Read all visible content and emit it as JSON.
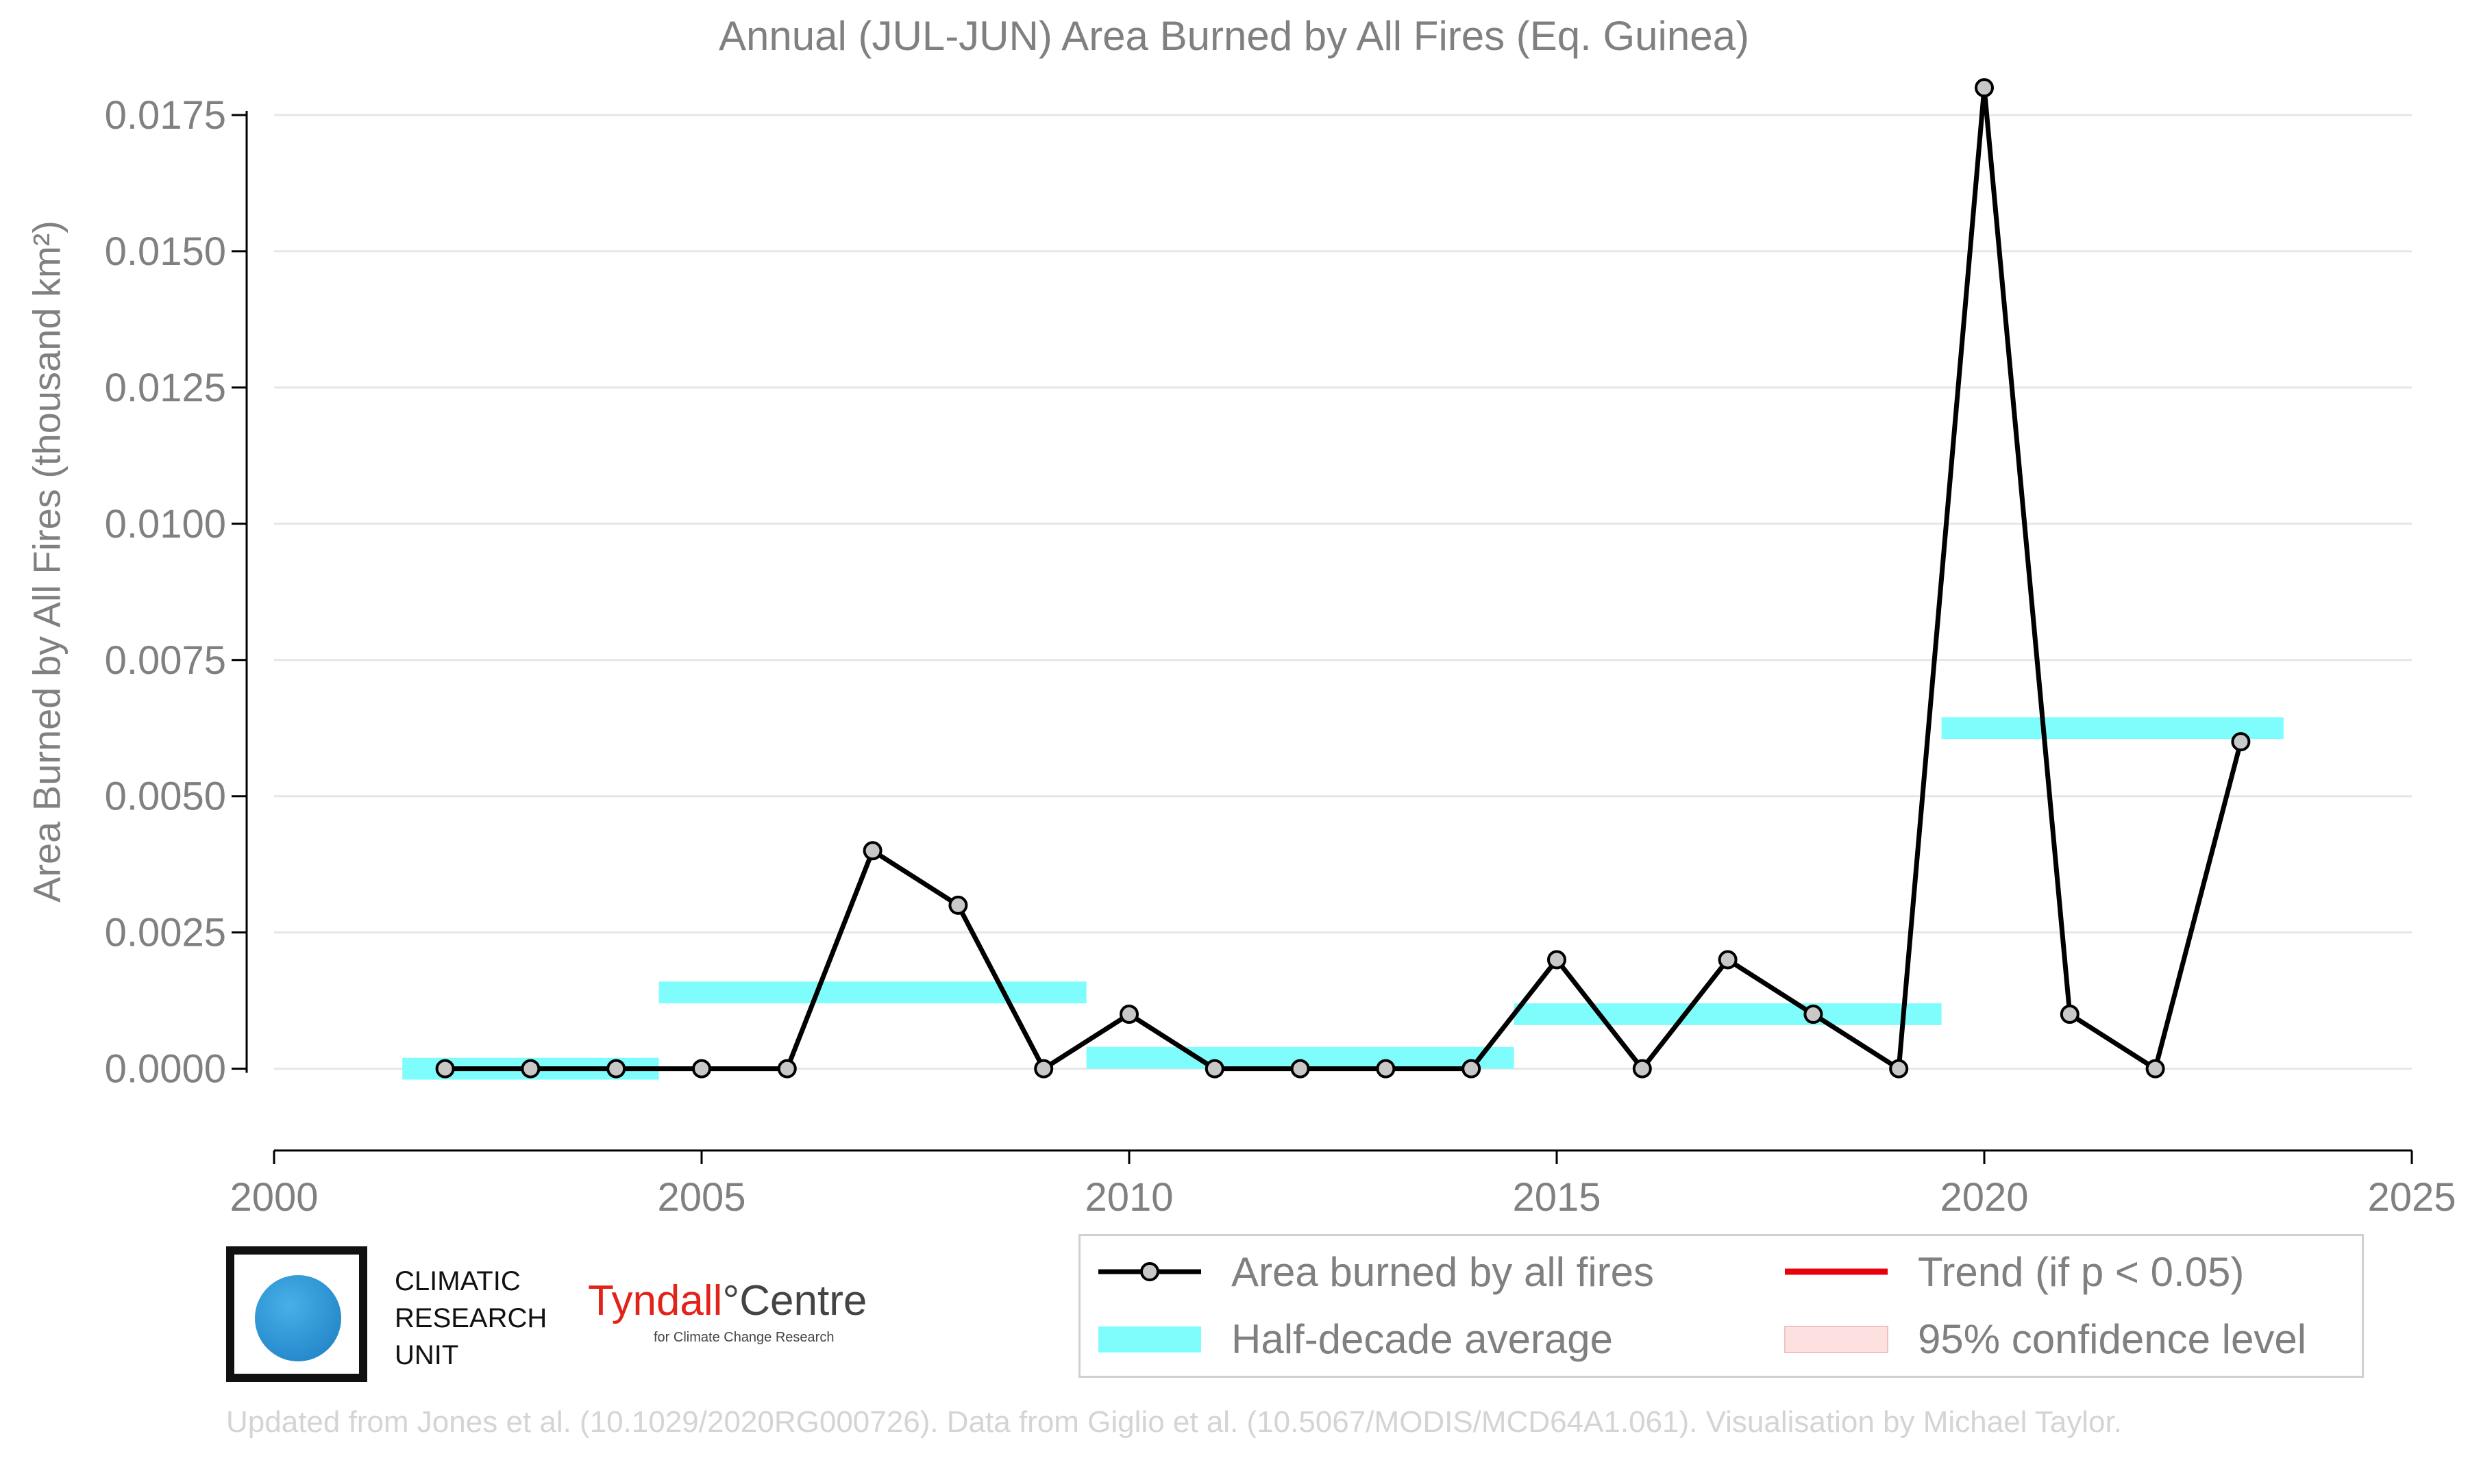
{
  "title": "Annual (JUL-JUN) Area Burned by All Fires (Eq. Guinea)",
  "ylabel": "Area Burned by All Fires (thousand km²)",
  "credit": "Updated from Jones et al. (10.1029/2020RG000726). Data from Giglio et al. (10.5067/MODIS/MCD64A1.061). Visualisation by Michael Taylor.",
  "logos": {
    "cru": {
      "line1": "CLIMATIC",
      "line2": "RESEARCH",
      "line3": "UNIT"
    },
    "tyndall": {
      "main_a": "Tyndall",
      "main_b": "°Centre",
      "sub": "for Climate Change Research"
    }
  },
  "legend": {
    "series": "Area burned by all fires",
    "halfdecade": "Half-decade average",
    "trend": "Trend (if p < 0.05)",
    "ci": "95% confidence level"
  },
  "colors": {
    "series": "#000000",
    "marker_fill": "#c8c8c8",
    "halfdecade": "#7ffdfd",
    "trend": "#e8000b",
    "ci": "#fde0e0",
    "grid": "#e6e6e6",
    "text": "#808080"
  },
  "chart_data": {
    "type": "line",
    "title": "Annual (JUL-JUN) Area Burned by All Fires (Eq. Guinea)",
    "xlabel": "",
    "ylabel": "Area Burned by All Fires (thousand km²)",
    "xlim": [
      2000,
      2025
    ],
    "ylim": [
      -0.0015,
      0.0176
    ],
    "xticks": [
      2000,
      2005,
      2010,
      2015,
      2020,
      2025
    ],
    "yticks": [
      "0.0000",
      "0.0025",
      "0.0050",
      "0.0075",
      "0.0100",
      "0.0125",
      "0.0150",
      "0.0175"
    ],
    "grid": "horizontal",
    "legend_position": "bottom",
    "series": [
      {
        "name": "Area burned by all fires",
        "x": [
          2002,
          2003,
          2004,
          2005,
          2006,
          2007,
          2008,
          2009,
          2010,
          2011,
          2012,
          2013,
          2014,
          2015,
          2016,
          2017,
          2018,
          2019,
          2020,
          2021,
          2022,
          2023
        ],
        "y": [
          0,
          0,
          0,
          0,
          0,
          0.004,
          0.003,
          0,
          0.001,
          0,
          0,
          0,
          0,
          0.002,
          0,
          0.002,
          0.001,
          0,
          0.018,
          0.001,
          0,
          0.006
        ]
      }
    ],
    "half_decade_average": {
      "name": "Half-decade average",
      "segments": [
        {
          "x0": 2001.5,
          "x1": 2004.5,
          "y": 0.0
        },
        {
          "x0": 2004.5,
          "x1": 2009.5,
          "y": 0.0014
        },
        {
          "x0": 2009.5,
          "x1": 2014.5,
          "y": 0.0002
        },
        {
          "x0": 2014.5,
          "x1": 2019.5,
          "y": 0.001
        },
        {
          "x0": 2019.5,
          "x1": 2023.5,
          "y": 0.00625
        }
      ]
    }
  }
}
